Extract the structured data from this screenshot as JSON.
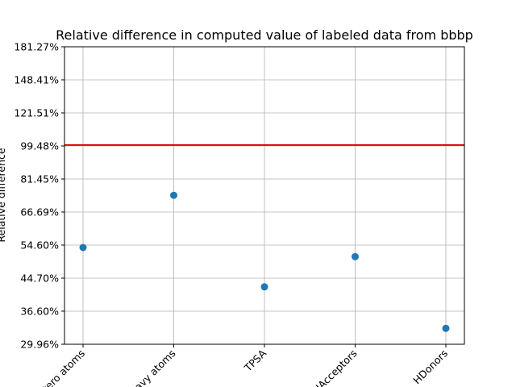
{
  "chart_data": {
    "type": "scatter",
    "title": "Relative difference in computed value of labeled data from bbbp",
    "ylabel": "Relative difference",
    "xlabel": "",
    "y_scale": "log",
    "ylim": [
      29.96,
      181.27
    ],
    "y_ticks": [
      {
        "value": 29.96,
        "label": "29.96%"
      },
      {
        "value": 36.6,
        "label": "36.60%"
      },
      {
        "value": 44.7,
        "label": "44.70%"
      },
      {
        "value": 54.6,
        "label": "54.60%"
      },
      {
        "value": 66.69,
        "label": "66.69%"
      },
      {
        "value": 81.45,
        "label": "81.45%"
      },
      {
        "value": 99.48,
        "label": "99.48%"
      },
      {
        "value": 121.51,
        "label": "121.51%"
      },
      {
        "value": 148.41,
        "label": "148.41%"
      },
      {
        "value": 181.27,
        "label": "181.27%"
      }
    ],
    "categories": [
      "Hetero atoms",
      "Heavy atoms",
      "TPSA",
      "HAcceptors",
      "HDonors"
    ],
    "values": [
      53.8,
      73.8,
      42.4,
      50.9,
      33.0
    ],
    "reference_line": {
      "value": 100,
      "color": "#e00000"
    },
    "marker_color": "#1f77b4",
    "grid": true
  }
}
